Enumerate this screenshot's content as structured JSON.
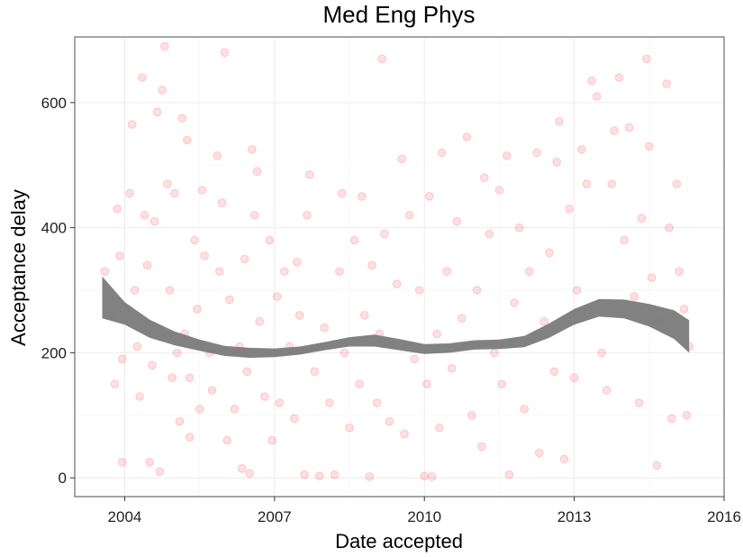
{
  "chart_data": {
    "type": "scatter",
    "title": "Med Eng Phys",
    "xlabel": "Date accepted",
    "ylabel": "Acceptance delay",
    "xlim": [
      2003.0,
      2016.0
    ],
    "ylim": [
      -30,
      705
    ],
    "x_ticks": [
      2004,
      2007,
      2010,
      2013,
      2016
    ],
    "y_ticks": [
      0,
      200,
      400,
      600
    ],
    "x_tick_labels": [
      "2004",
      "2007",
      "2010",
      "2013",
      "2016"
    ],
    "y_tick_labels": [
      "0",
      "200",
      "400",
      "600"
    ],
    "grid": true,
    "point_color": "#ff0000",
    "smooth_color": "#7a7a7a",
    "points": [
      [
        2003.6,
        330
      ],
      [
        2003.75,
        260
      ],
      [
        2003.85,
        430
      ],
      [
        2003.9,
        355
      ],
      [
        2003.95,
        190
      ],
      [
        2003.8,
        150
      ],
      [
        2003.95,
        25
      ],
      [
        2004.05,
        270
      ],
      [
        2004.1,
        455
      ],
      [
        2004.15,
        565
      ],
      [
        2004.2,
        300
      ],
      [
        2004.25,
        210
      ],
      [
        2004.3,
        130
      ],
      [
        2004.35,
        640
      ],
      [
        2004.4,
        420
      ],
      [
        2004.45,
        340
      ],
      [
        2004.5,
        25
      ],
      [
        2004.55,
        180
      ],
      [
        2004.6,
        410
      ],
      [
        2004.65,
        585
      ],
      [
        2004.7,
        10
      ],
      [
        2004.75,
        620
      ],
      [
        2004.8,
        690
      ],
      [
        2004.85,
        470
      ],
      [
        2004.9,
        300
      ],
      [
        2004.95,
        160
      ],
      [
        2005.0,
        455
      ],
      [
        2005.05,
        200
      ],
      [
        2005.1,
        90
      ],
      [
        2005.15,
        575
      ],
      [
        2005.2,
        230
      ],
      [
        2005.25,
        540
      ],
      [
        2005.3,
        160
      ],
      [
        2005.3,
        65
      ],
      [
        2005.4,
        380
      ],
      [
        2005.45,
        270
      ],
      [
        2005.5,
        110
      ],
      [
        2005.55,
        460
      ],
      [
        2005.6,
        355
      ],
      [
        2005.7,
        200
      ],
      [
        2005.75,
        140
      ],
      [
        2005.85,
        515
      ],
      [
        2005.9,
        330
      ],
      [
        2005.95,
        440
      ],
      [
        2006.0,
        680
      ],
      [
        2006.05,
        60
      ],
      [
        2006.1,
        285
      ],
      [
        2006.2,
        110
      ],
      [
        2006.3,
        210
      ],
      [
        2006.35,
        15
      ],
      [
        2006.4,
        350
      ],
      [
        2006.45,
        170
      ],
      [
        2006.5,
        7
      ],
      [
        2006.55,
        525
      ],
      [
        2006.6,
        420
      ],
      [
        2006.65,
        490
      ],
      [
        2006.7,
        250
      ],
      [
        2006.8,
        130
      ],
      [
        2006.9,
        380
      ],
      [
        2006.95,
        60
      ],
      [
        2007.05,
        290
      ],
      [
        2007.1,
        120
      ],
      [
        2007.2,
        330
      ],
      [
        2007.3,
        210
      ],
      [
        2007.4,
        95
      ],
      [
        2007.45,
        345
      ],
      [
        2007.5,
        260
      ],
      [
        2007.6,
        5
      ],
      [
        2007.65,
        420
      ],
      [
        2007.7,
        485
      ],
      [
        2007.8,
        170
      ],
      [
        2007.9,
        3
      ],
      [
        2008.0,
        240
      ],
      [
        2008.1,
        120
      ],
      [
        2008.2,
        5
      ],
      [
        2008.3,
        330
      ],
      [
        2008.35,
        455
      ],
      [
        2008.4,
        200
      ],
      [
        2008.5,
        80
      ],
      [
        2008.6,
        380
      ],
      [
        2008.7,
        150
      ],
      [
        2008.75,
        450
      ],
      [
        2008.8,
        260
      ],
      [
        2008.9,
        2
      ],
      [
        2008.95,
        340
      ],
      [
        2009.05,
        120
      ],
      [
        2009.1,
        230
      ],
      [
        2009.15,
        670
      ],
      [
        2009.2,
        390
      ],
      [
        2009.3,
        90
      ],
      [
        2009.45,
        310
      ],
      [
        2009.55,
        510
      ],
      [
        2009.6,
        70
      ],
      [
        2009.7,
        420
      ],
      [
        2009.8,
        190
      ],
      [
        2009.9,
        300
      ],
      [
        2010.0,
        3
      ],
      [
        2010.05,
        150
      ],
      [
        2010.1,
        450
      ],
      [
        2010.15,
        2
      ],
      [
        2010.25,
        230
      ],
      [
        2010.3,
        80
      ],
      [
        2010.35,
        520
      ],
      [
        2010.45,
        330
      ],
      [
        2010.55,
        175
      ],
      [
        2010.65,
        410
      ],
      [
        2010.75,
        255
      ],
      [
        2010.85,
        545
      ],
      [
        2010.95,
        100
      ],
      [
        2011.05,
        300
      ],
      [
        2011.15,
        50
      ],
      [
        2011.2,
        480
      ],
      [
        2011.3,
        390
      ],
      [
        2011.4,
        200
      ],
      [
        2011.5,
        460
      ],
      [
        2011.55,
        150
      ],
      [
        2011.65,
        515
      ],
      [
        2011.7,
        5
      ],
      [
        2011.8,
        280
      ],
      [
        2011.9,
        400
      ],
      [
        2012.0,
        110
      ],
      [
        2012.1,
        330
      ],
      [
        2012.25,
        520
      ],
      [
        2012.3,
        40
      ],
      [
        2012.4,
        250
      ],
      [
        2012.5,
        360
      ],
      [
        2012.6,
        170
      ],
      [
        2012.65,
        505
      ],
      [
        2012.7,
        570
      ],
      [
        2012.8,
        30
      ],
      [
        2012.9,
        430
      ],
      [
        2013.0,
        160
      ],
      [
        2013.05,
        300
      ],
      [
        2013.15,
        525
      ],
      [
        2013.25,
        470
      ],
      [
        2013.35,
        635
      ],
      [
        2013.45,
        610
      ],
      [
        2013.55,
        200
      ],
      [
        2013.65,
        140
      ],
      [
        2013.75,
        470
      ],
      [
        2013.8,
        555
      ],
      [
        2013.9,
        640
      ],
      [
        2014.0,
        380
      ],
      [
        2014.1,
        560
      ],
      [
        2014.2,
        290
      ],
      [
        2014.3,
        120
      ],
      [
        2014.35,
        415
      ],
      [
        2014.45,
        670
      ],
      [
        2014.5,
        530
      ],
      [
        2014.55,
        320
      ],
      [
        2014.65,
        20
      ],
      [
        2014.75,
        250
      ],
      [
        2014.85,
        630
      ],
      [
        2014.9,
        400
      ],
      [
        2014.95,
        95
      ],
      [
        2015.05,
        470
      ],
      [
        2015.1,
        330
      ],
      [
        2015.2,
        270
      ],
      [
        2015.25,
        100
      ],
      [
        2015.3,
        210
      ]
    ],
    "smooth": {
      "x": [
        2003.55,
        2004.0,
        2004.5,
        2005.0,
        2005.5,
        2006.0,
        2006.5,
        2007.0,
        2007.5,
        2008.0,
        2008.5,
        2009.0,
        2009.5,
        2010.0,
        2010.5,
        2011.0,
        2011.5,
        2012.0,
        2012.5,
        2013.0,
        2013.5,
        2014.0,
        2014.5,
        2015.0,
        2015.3
      ],
      "fit": [
        288,
        262,
        238,
        223,
        212,
        203,
        200,
        200,
        203,
        210,
        217,
        219,
        213,
        206,
        207,
        212,
        213,
        218,
        235,
        258,
        272,
        270,
        260,
        245,
        225
      ],
      "lower": [
        255,
        245,
        224,
        212,
        203,
        195,
        192,
        193,
        197,
        204,
        210,
        210,
        204,
        198,
        200,
        205,
        206,
        209,
        224,
        245,
        258,
        255,
        242,
        222,
        200
      ],
      "upper": [
        322,
        281,
        253,
        234,
        221,
        211,
        208,
        207,
        210,
        217,
        225,
        229,
        222,
        214,
        215,
        220,
        221,
        227,
        247,
        270,
        286,
        285,
        278,
        268,
        252
      ]
    }
  }
}
